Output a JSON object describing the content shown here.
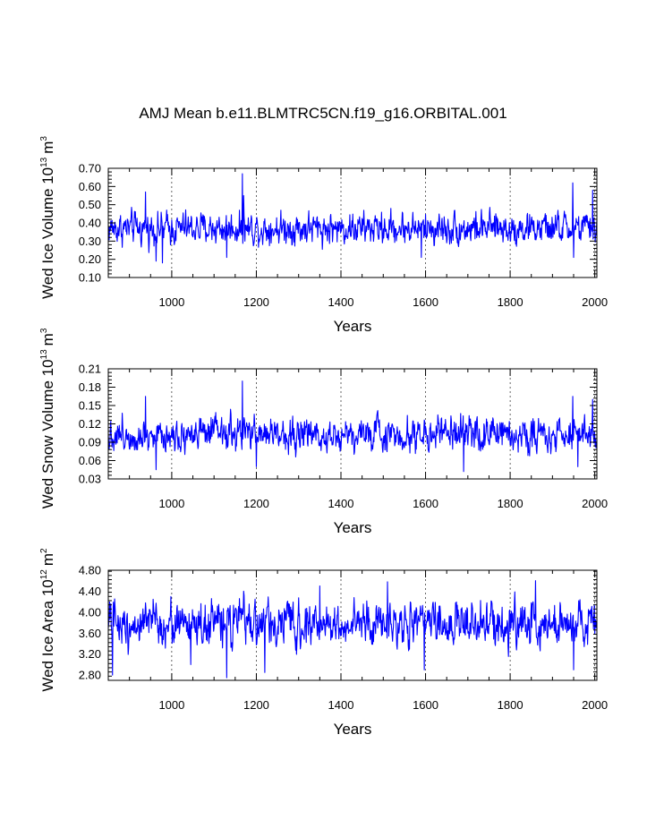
{
  "title": "AMJ Mean b.e11.BLMTRC5CN.f19_g16.ORBITAL.001",
  "chart_data": [
    {
      "type": "line",
      "name": "ice-volume",
      "title": "AMJ Mean b.e11.BLMTRC5CN.f19_g16.ORBITAL.001",
      "xlabel": "Years",
      "ylabel_main": "Wed Ice Volume 10",
      "ylabel_exp": "13",
      "ylabel_unit": "m",
      "ylabel_unit_exp": "3",
      "xlim": [
        850,
        2005
      ],
      "ylim": [
        0.1,
        0.7
      ],
      "xticks": [
        "1000",
        "1200",
        "1400",
        "1600",
        "1800",
        "2000"
      ],
      "xtick_values": [
        1000,
        1200,
        1400,
        1600,
        1800,
        2000
      ],
      "yticks": [
        "0.70",
        "0.60",
        "0.50",
        "0.40",
        "0.30",
        "0.20",
        "0.10"
      ],
      "ytick_values": [
        0.7,
        0.6,
        0.5,
        0.4,
        0.3,
        0.2,
        0.1
      ],
      "grid": "dashed vertical at major x ticks",
      "x_start": 850,
      "x_end": 2005,
      "mean": 0.37,
      "noise": 0.055,
      "spikes": [
        {
          "year": 1167,
          "value": 0.67
        },
        {
          "year": 1170,
          "value": 0.55
        },
        {
          "year": 938,
          "value": 0.57
        },
        {
          "year": 1948,
          "value": 0.62
        },
        {
          "year": 1995,
          "value": 0.58
        },
        {
          "year": 963,
          "value": 0.19
        },
        {
          "year": 978,
          "value": 0.18
        },
        {
          "year": 1130,
          "value": 0.21
        },
        {
          "year": 1590,
          "value": 0.21
        },
        {
          "year": 1950,
          "value": 0.21
        }
      ],
      "series": [
        {
          "name": "Wed Ice Volume",
          "color": "#0000ff"
        }
      ]
    },
    {
      "type": "line",
      "name": "snow-volume",
      "xlabel": "Years",
      "ylabel_main": "Wed Snow Volume 10",
      "ylabel_exp": "13",
      "ylabel_unit": "m",
      "ylabel_unit_exp": "3",
      "xlim": [
        850,
        2005
      ],
      "ylim": [
        0.03,
        0.21
      ],
      "xticks": [
        "1000",
        "1200",
        "1400",
        "1600",
        "1800",
        "2000"
      ],
      "xtick_values": [
        1000,
        1200,
        1400,
        1600,
        1800,
        2000
      ],
      "yticks": [
        "0.21",
        "0.18",
        "0.15",
        "0.12",
        "0.09",
        "0.06",
        "0.03"
      ],
      "ytick_values": [
        0.21,
        0.18,
        0.15,
        0.12,
        0.09,
        0.06,
        0.03
      ],
      "grid": "dashed vertical at major x ticks",
      "x_start": 850,
      "x_end": 2005,
      "mean": 0.103,
      "noise": 0.017,
      "spikes": [
        {
          "year": 1167,
          "value": 0.19
        },
        {
          "year": 938,
          "value": 0.165
        },
        {
          "year": 1948,
          "value": 0.165
        },
        {
          "year": 1995,
          "value": 0.16
        },
        {
          "year": 963,
          "value": 0.045
        },
        {
          "year": 1200,
          "value": 0.05
        },
        {
          "year": 1690,
          "value": 0.042
        },
        {
          "year": 1960,
          "value": 0.05
        }
      ],
      "series": [
        {
          "name": "Wed Snow Volume",
          "color": "#0000ff"
        }
      ]
    },
    {
      "type": "line",
      "name": "ice-area",
      "xlabel": "Years",
      "ylabel_main": "Wed Ice Area 10",
      "ylabel_exp": "12",
      "ylabel_unit": "m",
      "ylabel_unit_exp": "2",
      "xlim": [
        850,
        2005
      ],
      "ylim": [
        2.7,
        4.8
      ],
      "xticks": [
        "1000",
        "1200",
        "1400",
        "1600",
        "1800",
        "2000"
      ],
      "xtick_values": [
        1000,
        1200,
        1400,
        1600,
        1800,
        2000
      ],
      "yticks": [
        "4.80",
        "4.40",
        "4.00",
        "3.60",
        "3.20",
        "2.80"
      ],
      "ytick_values": [
        4.8,
        4.4,
        4.0,
        3.6,
        3.2,
        2.8
      ],
      "grid": "dashed vertical at major x ticks",
      "x_start": 850,
      "x_end": 2005,
      "mean": 3.78,
      "noise": 0.26,
      "spikes": [
        {
          "year": 1860,
          "value": 4.6
        },
        {
          "year": 1510,
          "value": 4.58
        },
        {
          "year": 1350,
          "value": 4.5
        },
        {
          "year": 1170,
          "value": 4.4
        },
        {
          "year": 1130,
          "value": 2.75
        },
        {
          "year": 860,
          "value": 2.8
        },
        {
          "year": 1220,
          "value": 2.85
        },
        {
          "year": 1597,
          "value": 2.9
        },
        {
          "year": 1950,
          "value": 2.9
        },
        {
          "year": 1045,
          "value": 3.0
        }
      ],
      "series": [
        {
          "name": "Wed Ice Area",
          "color": "#0000ff"
        }
      ]
    }
  ]
}
